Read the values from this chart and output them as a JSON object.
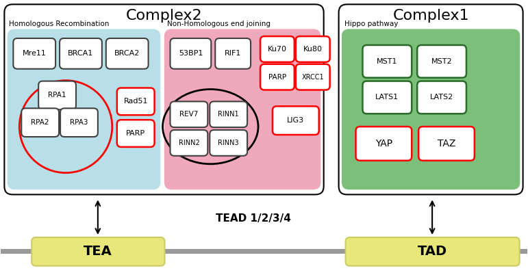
{
  "fig_width": 7.71,
  "fig_height": 4.05,
  "dpi": 100,
  "bg_color": "#ffffff",
  "complex2_label": "Complex2",
  "complex1_label": "Complex1",
  "hr_label": "Homologous Recombination",
  "nhej_label": "Non-Homologous end joining",
  "hippo_label": "Hippo pathway",
  "hr_color": "#b8dfe8",
  "nhej_color": "#f0a8bc",
  "hippo_color": "#7bbf7b",
  "tead_label": "TEAD 1/2/3/4",
  "tea_label": "TEA",
  "tad_label": "TAD",
  "tea_color": "#e8e87a",
  "tad_color": "#e8e87a",
  "line_color": "#999999"
}
